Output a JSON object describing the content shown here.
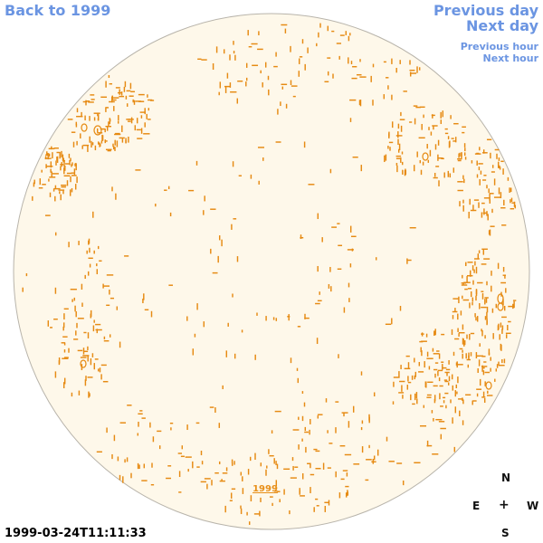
{
  "navigation": {
    "back_label": "Back to 1999",
    "previous_day_label": "Previous day",
    "next_day_label": "Next day",
    "previous_hour_label": "Previous hour",
    "next_hour_label": "Next hour"
  },
  "sun": {
    "year_label": "1999",
    "timestamp": "1999-03-24T11:11:33"
  },
  "compass": {
    "north": "N",
    "east": "E",
    "center": "+",
    "west": "W",
    "south": "S"
  },
  "colors": {
    "link": "#6b95e2",
    "disk_fill": "#fef8ea",
    "disk_edge": "#b8b4ab",
    "feature_orange": "#e68a12",
    "label": "#000000"
  }
}
